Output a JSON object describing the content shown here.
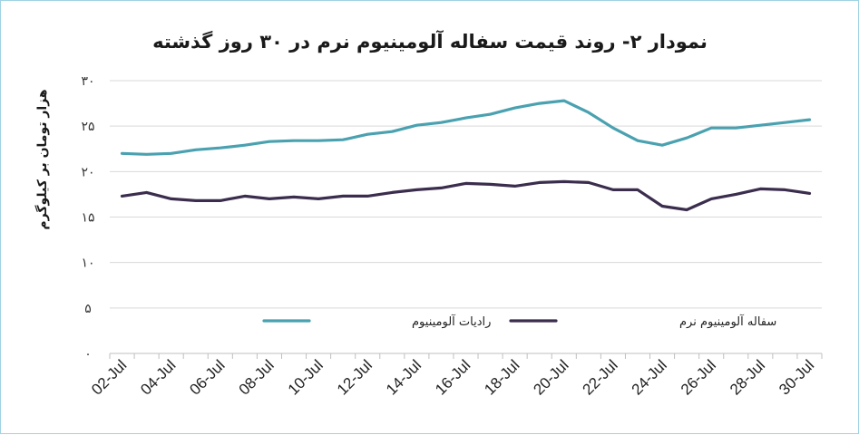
{
  "chart_data": {
    "type": "line",
    "title": "نمودار ۲- روند قیمت سفاله آلومینیوم نرم در ۳۰ روز گذشته",
    "ylabel": "هزار تومان بر کیلوگرم",
    "xlabel": "",
    "ylim": [
      0,
      30
    ],
    "yticks": [
      0,
      5,
      10,
      15,
      20,
      25,
      30
    ],
    "ytick_labels": [
      "۰",
      "۵",
      "۱۰",
      "۱۵",
      "۲۰",
      "۲۵",
      "۳۰"
    ],
    "x": [
      "02-Jul",
      "03-Jul",
      "04-Jul",
      "05-Jul",
      "06-Jul",
      "07-Jul",
      "08-Jul",
      "09-Jul",
      "10-Jul",
      "11-Jul",
      "12-Jul",
      "13-Jul",
      "14-Jul",
      "15-Jul",
      "16-Jul",
      "17-Jul",
      "18-Jul",
      "19-Jul",
      "20-Jul",
      "21-Jul",
      "22-Jul",
      "23-Jul",
      "24-Jul",
      "25-Jul",
      "26-Jul",
      "27-Jul",
      "28-Jul",
      "29-Jul",
      "30-Jul"
    ],
    "xtick_labels": [
      "02-Jul",
      "04-Jul",
      "06-Jul",
      "08-Jul",
      "10-Jul",
      "12-Jul",
      "14-Jul",
      "16-Jul",
      "18-Jul",
      "20-Jul",
      "22-Jul",
      "24-Jul",
      "26-Jul",
      "28-Jul",
      "30-Jul"
    ],
    "grid": true,
    "legend_position": "bottom-inside",
    "series": [
      {
        "name": "رادیات آلومینیوم",
        "color": "#4aa1b0",
        "values": [
          22.0,
          21.9,
          22.0,
          22.4,
          22.6,
          22.9,
          23.3,
          23.4,
          23.4,
          23.5,
          24.1,
          24.4,
          25.1,
          25.4,
          25.9,
          26.3,
          27.0,
          27.5,
          27.8,
          26.5,
          24.8,
          23.4,
          22.9,
          23.7,
          24.8,
          24.8,
          25.1,
          25.4,
          25.7
        ]
      },
      {
        "name": "سفاله آلومینیوم نرم",
        "color": "#3b2d4d",
        "values": [
          17.3,
          17.7,
          17.0,
          16.8,
          16.8,
          17.3,
          17.0,
          17.2,
          17.0,
          17.3,
          17.3,
          17.7,
          18.0,
          18.2,
          18.7,
          18.6,
          18.4,
          18.8,
          18.9,
          18.8,
          18.0,
          18.0,
          16.2,
          15.8,
          17.0,
          17.5,
          18.1,
          18.0,
          17.6
        ]
      }
    ]
  }
}
